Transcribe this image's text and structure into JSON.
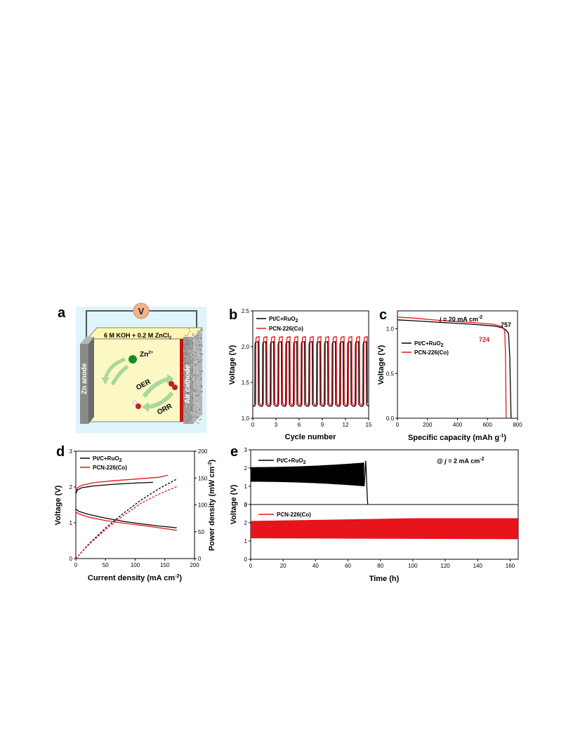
{
  "colors": {
    "black_series": "#000000",
    "red_series": "#e8141b",
    "schematic_bg": "#dff4fb",
    "electrolyte": "#fbf8c4",
    "volt_circle": "#f0b48a",
    "anode": "#8a8a8a",
    "cathode_stripe": "#c41414",
    "arrow": "#a8d89a"
  },
  "panels": {
    "a": {
      "letter": "a",
      "electrolyte_text": "6 M KOH + 0.2 M ZnCl",
      "electrolyte_sub": "2",
      "anode_text": "Zn anode",
      "cathode_text": "Air cathode",
      "volt_text": "V",
      "ion_text": "Zn",
      "ion_sup": "2+",
      "oer_text": "OER",
      "orr_text": "ORR"
    },
    "b": {
      "letter": "b"
    },
    "c": {
      "letter": "c"
    },
    "d": {
      "letter": "d"
    },
    "e": {
      "letter": "e"
    }
  },
  "chart_data": [
    {
      "panel": "b",
      "type": "line",
      "xlabel": "Cycle number",
      "ylabel": "Voltage (V)",
      "xlim": [
        0,
        15
      ],
      "ylim": [
        1.0,
        2.5
      ],
      "xticks": [
        "0",
        "3",
        "6",
        "9",
        "12",
        "15"
      ],
      "yticks": [
        "1.0",
        "1.5",
        "2.0",
        "2.5"
      ],
      "legend": [
        {
          "name": "Pt/C+RuO",
          "sub": "2"
        },
        {
          "name": "PCN-226(Co)",
          "sub": ""
        }
      ],
      "series": [
        {
          "name": "Pt/C+RuO2",
          "cycles": 15,
          "charge": 2.06,
          "discharge": 1.17
        },
        {
          "name": "PCN-226(Co)",
          "cycles": 15,
          "charge": 2.13,
          "discharge": 1.19
        }
      ]
    },
    {
      "panel": "c",
      "type": "line",
      "xlabel": "Specific capacity (mAh g",
      "xlabel_sup": "-1",
      "xlabel_end": ")",
      "ylabel": "Voltage (V)",
      "xlim": [
        0,
        800
      ],
      "ylim": [
        0,
        1.2
      ],
      "xticks": [
        "0",
        "200",
        "400",
        "600",
        "800"
      ],
      "yticks": [
        "0.0",
        "0.5",
        "1.0"
      ],
      "annotation": {
        "prefix": "j",
        "text": " = 20 mA cm",
        "sup": "-2"
      },
      "end_labels": {
        "black": "757",
        "red": "724"
      },
      "legend": [
        {
          "name": "Pt/C+RuO",
          "sub": "2"
        },
        {
          "name": "PCN-226(Co)",
          "sub": ""
        }
      ],
      "series": [
        {
          "name": "Pt/C+RuO2",
          "x": [
            0,
            100,
            300,
            500,
            650,
            700,
            720,
            740,
            748,
            757
          ],
          "y": [
            1.1,
            1.09,
            1.07,
            1.05,
            1.03,
            1.01,
            0.99,
            0.95,
            0.7,
            0.0
          ]
        },
        {
          "name": "PCN-226(Co)",
          "x": [
            0,
            100,
            300,
            500,
            640,
            690,
            705,
            715,
            720,
            724
          ],
          "y": [
            1.13,
            1.12,
            1.09,
            1.07,
            1.05,
            1.03,
            1.01,
            0.97,
            0.7,
            0.0
          ]
        }
      ]
    },
    {
      "panel": "d",
      "type": "line",
      "xlabel": "Current density (mA cm",
      "xlabel_sup": "-2",
      "xlabel_end": ")",
      "ylabel": "Voltage (V)",
      "ylabel2": "Power density (mW cm",
      "ylabel2_sup": "-2",
      "ylabel2_end": ")",
      "xlim": [
        0,
        200
      ],
      "ylim": [
        0,
        3
      ],
      "y2lim": [
        0,
        200
      ],
      "xticks": [
        "0",
        "50",
        "100",
        "150",
        "200"
      ],
      "yticks": [
        "0",
        "1",
        "2",
        "3"
      ],
      "y2ticks": [
        "0",
        "50",
        "100",
        "150",
        "200"
      ],
      "legend": [
        {
          "name": "Pt/C+RuO",
          "sub": "2"
        },
        {
          "name": "PCN-226(Co)",
          "sub": ""
        }
      ],
      "series": [
        {
          "name": "Pt/C+RuO2 charge",
          "x": [
            0,
            3,
            10,
            30,
            60,
            100,
            130
          ],
          "y": [
            1.82,
            1.92,
            1.98,
            2.03,
            2.07,
            2.11,
            2.13
          ]
        },
        {
          "name": "PCN-226(Co) charge",
          "x": [
            0,
            3,
            10,
            30,
            60,
            100,
            140,
            155
          ],
          "y": [
            1.88,
            1.98,
            2.05,
            2.12,
            2.17,
            2.22,
            2.27,
            2.33
          ]
        },
        {
          "name": "Pt/C+RuO2 discharge",
          "x": [
            0,
            5,
            20,
            50,
            80,
            110,
            140,
            170
          ],
          "y": [
            1.38,
            1.32,
            1.24,
            1.13,
            1.04,
            0.97,
            0.91,
            0.86
          ]
        },
        {
          "name": "PCN-226(Co) discharge",
          "x": [
            0,
            5,
            20,
            50,
            80,
            110,
            140,
            170
          ],
          "y": [
            1.3,
            1.25,
            1.16,
            1.06,
            0.99,
            0.93,
            0.86,
            0.79
          ]
        },
        {
          "name": "Pt/C+RuO2 power",
          "axis": "y2",
          "x": [
            0,
            20,
            50,
            80,
            110,
            140,
            170
          ],
          "y": [
            0,
            25,
            57,
            84,
            109,
            130,
            148
          ]
        },
        {
          "name": "PCN-226(Co) power",
          "axis": "y2",
          "x": [
            0,
            20,
            50,
            80,
            110,
            140,
            170
          ],
          "y": [
            0,
            24,
            54,
            80,
            103,
            120,
            134
          ]
        }
      ]
    },
    {
      "panel": "e",
      "type": "line",
      "xlabel": "Time (h)",
      "ylabel": "Voltage (V)",
      "xlim": [
        0,
        165
      ],
      "ylim": [
        0,
        3
      ],
      "xticks": [
        "0",
        "20",
        "40",
        "60",
        "80",
        "100",
        "120",
        "140",
        "160"
      ],
      "yticks": [
        "0",
        "1",
        "2",
        "3"
      ],
      "annotation": {
        "prefix": "@ ",
        "italic": "j",
        "text": " = 2 mA cm",
        "sup": "-2"
      },
      "legend": [
        {
          "name": "Pt/C+RuO",
          "sub": "2"
        },
        {
          "name": "PCN-226(Co)",
          "sub": ""
        }
      ],
      "series": [
        {
          "name": "Pt/C+RuO2",
          "t_end": 72,
          "charge": [
            2.05,
            2.3
          ],
          "discharge": [
            1.25,
            1.0
          ]
        },
        {
          "name": "PCN-226(Co)",
          "t_end": 165,
          "charge": [
            2.1,
            2.25
          ],
          "discharge": [
            1.15,
            1.1
          ]
        }
      ]
    }
  ]
}
